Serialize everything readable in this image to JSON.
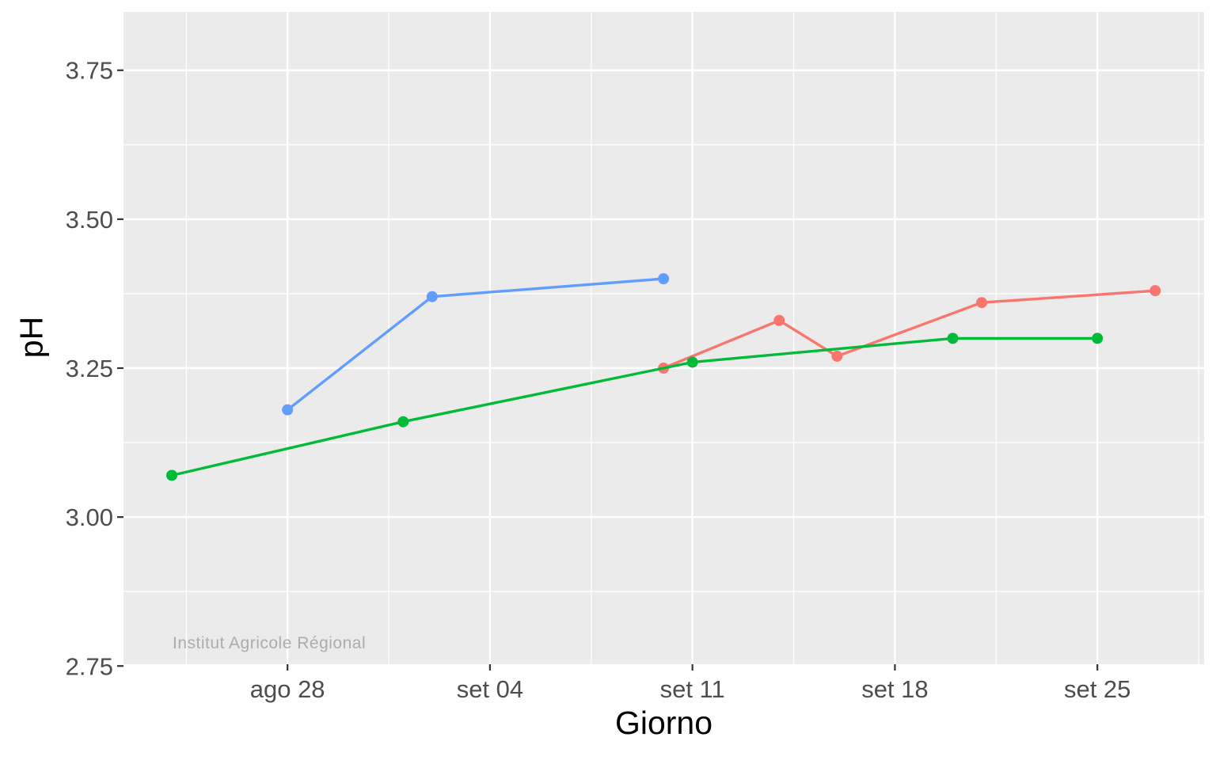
{
  "watermark": "Institut Agricole Régional",
  "colors": {
    "page_bg": "#FFFFFF",
    "panel_bg": "#EBEBEB",
    "grid_major": "#FFFFFF",
    "grid_minor": "#FFFFFF",
    "tick_mark": "#333333",
    "tick_label": "#4D4D4D",
    "axis_title": "#000000",
    "watermark": "#ABADAB",
    "series_red": "#F8766D",
    "series_green": "#00BA38",
    "series_blue": "#619CFF"
  },
  "chart_data": {
    "type": "line",
    "title": "",
    "xlabel": "Giorno",
    "ylabel": "pH",
    "grid": true,
    "legend": "none",
    "x_unit": "days relative to ago 28",
    "x_domain": [
      -5.67,
      31.69
    ],
    "y_domain": [
      2.753,
      3.848
    ],
    "x_ticks": [
      {
        "label": "ago 28",
        "day": 0
      },
      {
        "label": "set 04",
        "day": 7
      },
      {
        "label": "set 11",
        "day": 14
      },
      {
        "label": "set 18",
        "day": 21
      },
      {
        "label": "set 25",
        "day": 28
      }
    ],
    "x_minor": [
      -3.5,
      3.5,
      10.5,
      17.5,
      24.5,
      31.5
    ],
    "y_ticks": [
      {
        "label": "2.75",
        "value": 2.75
      },
      {
        "label": "3.00",
        "value": 3.0
      },
      {
        "label": "3.25",
        "value": 3.25
      },
      {
        "label": "3.50",
        "value": 3.5
      },
      {
        "label": "3.75",
        "value": 3.75
      }
    ],
    "y_minor": [
      2.875,
      3.125,
      3.375,
      3.625
    ],
    "series": [
      {
        "name": "series-red",
        "color": "#F8766D",
        "points": [
          {
            "date": "set 10",
            "day": 13,
            "ph": 3.25
          },
          {
            "date": "set 14",
            "day": 17,
            "ph": 3.33
          },
          {
            "date": "set 16",
            "day": 19,
            "ph": 3.27
          },
          {
            "date": "set 21",
            "day": 24,
            "ph": 3.36
          },
          {
            "date": "set 27",
            "day": 30,
            "ph": 3.38
          }
        ]
      },
      {
        "name": "series-green",
        "color": "#00BA38",
        "points": [
          {
            "date": "ago 24",
            "day": -4,
            "ph": 3.07
          },
          {
            "date": "set 01",
            "day": 4,
            "ph": 3.16
          },
          {
            "date": "set 11",
            "day": 14,
            "ph": 3.26
          },
          {
            "date": "set 20",
            "day": 23,
            "ph": 3.3
          },
          {
            "date": "set 25",
            "day": 28,
            "ph": 3.3
          }
        ]
      },
      {
        "name": "series-blue",
        "color": "#619CFF",
        "points": [
          {
            "date": "ago 28",
            "day": 0,
            "ph": 3.18
          },
          {
            "date": "set 02",
            "day": 5,
            "ph": 3.37
          },
          {
            "date": "set 10",
            "day": 13,
            "ph": 3.4
          }
        ]
      }
    ]
  }
}
